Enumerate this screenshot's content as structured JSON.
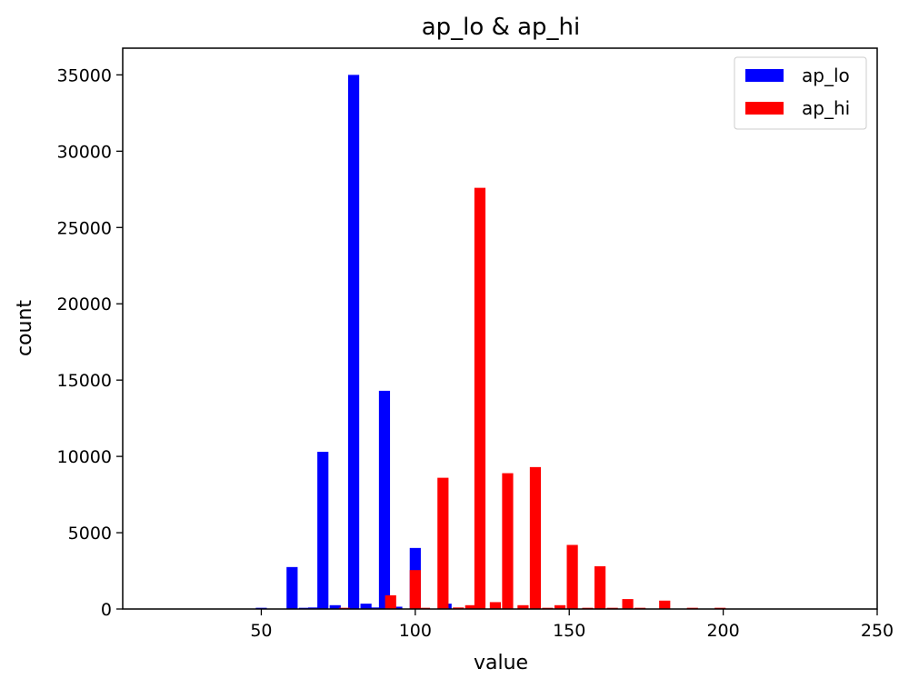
{
  "chart_data": {
    "type": "bar",
    "title": "ap_lo & ap_hi",
    "xlabel": "value",
    "ylabel": "count",
    "xlim": [
      5,
      250
    ],
    "ylim": [
      0,
      36750
    ],
    "x_ticks": [
      50,
      100,
      150,
      200,
      250
    ],
    "y_ticks": [
      0,
      5000,
      10000,
      15000,
      20000,
      25000,
      30000,
      35000
    ],
    "grid": false,
    "legend_position": "top-right",
    "bin_width": 3.6,
    "series": [
      {
        "name": "ap_lo",
        "color": "#0000ff",
        "points": [
          {
            "x": 50,
            "y": 80
          },
          {
            "x": 60,
            "y": 2750
          },
          {
            "x": 64,
            "y": 80
          },
          {
            "x": 67,
            "y": 100
          },
          {
            "x": 70,
            "y": 10300
          },
          {
            "x": 74,
            "y": 250
          },
          {
            "x": 80,
            "y": 35000
          },
          {
            "x": 84,
            "y": 350
          },
          {
            "x": 87,
            "y": 100
          },
          {
            "x": 90,
            "y": 14300
          },
          {
            "x": 94,
            "y": 150
          },
          {
            "x": 100,
            "y": 4000
          },
          {
            "x": 110,
            "y": 350
          },
          {
            "x": 120,
            "y": 120
          }
        ]
      },
      {
        "name": "ap_hi",
        "color": "#ff0000",
        "points": [
          {
            "x": 77,
            "y": 80
          },
          {
            "x": 92,
            "y": 900
          },
          {
            "x": 100,
            "y": 2550
          },
          {
            "x": 103,
            "y": 80
          },
          {
            "x": 109,
            "y": 8600
          },
          {
            "x": 114,
            "y": 100
          },
          {
            "x": 118,
            "y": 250
          },
          {
            "x": 121,
            "y": 27600
          },
          {
            "x": 126,
            "y": 450
          },
          {
            "x": 130,
            "y": 8900
          },
          {
            "x": 135,
            "y": 250
          },
          {
            "x": 139,
            "y": 9300
          },
          {
            "x": 143,
            "y": 80
          },
          {
            "x": 147,
            "y": 250
          },
          {
            "x": 151,
            "y": 4200
          },
          {
            "x": 156,
            "y": 80
          },
          {
            "x": 160,
            "y": 2800
          },
          {
            "x": 164,
            "y": 80
          },
          {
            "x": 169,
            "y": 650
          },
          {
            "x": 173,
            "y": 80
          },
          {
            "x": 181,
            "y": 550
          },
          {
            "x": 190,
            "y": 80
          },
          {
            "x": 199,
            "y": 80
          }
        ]
      }
    ]
  }
}
